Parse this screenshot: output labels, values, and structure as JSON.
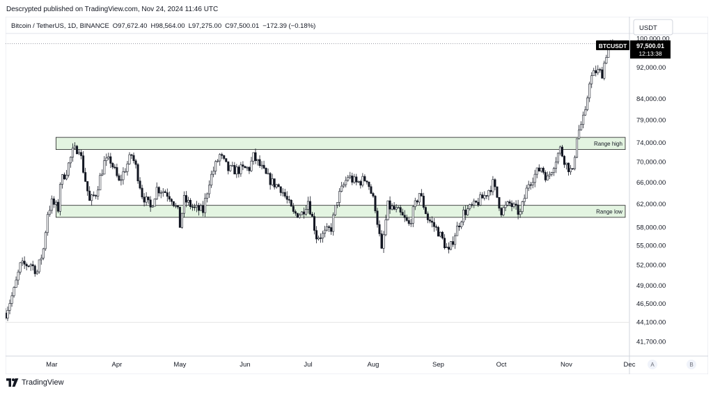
{
  "banner": "Descrypted published on TradingView.com, Nov 24, 2024 11:46 UTC",
  "footer_brand": "TradingView",
  "icons": {
    "logo": "tradingview-logo-icon"
  },
  "colors": {
    "up": "#131722",
    "down": "#131722",
    "zone_fill": "#e3f4e1",
    "zone_stroke": "#1e1e1e",
    "price_label_bg": "#000000",
    "price_label_fg": "#ffffff",
    "grid": "#e6e6e6",
    "dotted_line": "#9598a1"
  },
  "chart_data": {
    "type": "candlestick",
    "symbol_header": {
      "name": "Bitcoin / TetherUS, 1D, BINANCE",
      "open": "O97,672.40",
      "high": "H98,564.00",
      "low": "L97,275.00",
      "close": "C97,500.01",
      "change": "−172.39 (−0.18%)"
    },
    "currency_button": "USDT",
    "y_scale": "log",
    "ylim": [
      40000,
      101500
    ],
    "y_ticks": [
      {
        "value": 100000,
        "label": "100,000.00"
      },
      {
        "value": 92000,
        "label": "92,000.00"
      },
      {
        "value": 84000,
        "label": "84,000.00"
      },
      {
        "value": 79000,
        "label": "79,000.00"
      },
      {
        "value": 74000,
        "label": "74,000.00"
      },
      {
        "value": 70000,
        "label": "70,000.00"
      },
      {
        "value": 66000,
        "label": "66,000.00"
      },
      {
        "value": 62000,
        "label": "62,000.00"
      },
      {
        "value": 58000,
        "label": "58,000.00"
      },
      {
        "value": 55000,
        "label": "55,000.00"
      },
      {
        "value": 52000,
        "label": "52,000.00"
      },
      {
        "value": 49000,
        "label": "49,000.00"
      },
      {
        "value": 46500,
        "label": "46,500.00"
      },
      {
        "value": 44100,
        "label": "44,100.00"
      },
      {
        "value": 41700,
        "label": "41,700.00"
      }
    ],
    "x_months": [
      {
        "label": "Mar",
        "date": "2024-03-01"
      },
      {
        "label": "Apr",
        "date": "2024-04-01"
      },
      {
        "label": "May",
        "date": "2024-05-01"
      },
      {
        "label": "Jun",
        "date": "2024-06-01"
      },
      {
        "label": "Jul",
        "date": "2024-07-01"
      },
      {
        "label": "Aug",
        "date": "2024-08-01"
      },
      {
        "label": "Sep",
        "date": "2024-09-01"
      },
      {
        "label": "Oct",
        "date": "2024-10-01"
      },
      {
        "label": "Nov",
        "date": "2024-11-01"
      },
      {
        "label": "Dec",
        "date": "2024-12-01"
      }
    ],
    "x_range": [
      "2024-02-08",
      "2024-12-01"
    ],
    "nav_buttons": [
      "A",
      "B"
    ],
    "price_label": {
      "symbol": "BTCUSDT",
      "price": "97,500.01",
      "countdown": "12:13:38",
      "value": 97500.01
    },
    "horizontal_line": {
      "value": 98564
    },
    "zones": [
      {
        "label": "Range high",
        "low": 72600,
        "high": 75200,
        "start": "2024-03-03",
        "end": "2024-11-29"
      },
      {
        "label": "Range low",
        "low": 59700,
        "high": 61800,
        "start": "2024-03-03",
        "end": "2024-11-29"
      }
    ],
    "close_path": [
      [
        "2024-02-08",
        45300
      ],
      [
        "2024-02-12",
        48300
      ],
      [
        "2024-02-15",
        51900
      ],
      [
        "2024-02-20",
        52200
      ],
      [
        "2024-02-23",
        51000
      ],
      [
        "2024-02-26",
        54500
      ],
      [
        "2024-02-28",
        60500
      ],
      [
        "2024-03-01",
        62300
      ],
      [
        "2024-03-04",
        61200
      ],
      [
        "2024-03-05",
        66000
      ],
      [
        "2024-03-08",
        68300
      ],
      [
        "2024-03-11",
        72100
      ],
      [
        "2024-03-14",
        73100
      ],
      [
        "2024-03-16",
        68500
      ],
      [
        "2024-03-19",
        62400
      ],
      [
        "2024-03-22",
        64000
      ],
      [
        "2024-03-26",
        69900
      ],
      [
        "2024-03-29",
        70300
      ],
      [
        "2024-04-02",
        66000
      ],
      [
        "2024-04-08",
        71500
      ],
      [
        "2024-04-10",
        69000
      ],
      [
        "2024-04-13",
        63800
      ],
      [
        "2024-04-17",
        61300
      ],
      [
        "2024-04-20",
        64900
      ],
      [
        "2024-04-24",
        64300
      ],
      [
        "2024-04-27",
        63200
      ],
      [
        "2024-04-30",
        60600
      ],
      [
        "2024-05-01",
        58300
      ],
      [
        "2024-05-03",
        62800
      ],
      [
        "2024-05-08",
        61200
      ],
      [
        "2024-05-12",
        60800
      ],
      [
        "2024-05-15",
        66300
      ],
      [
        "2024-05-20",
        71400
      ],
      [
        "2024-05-24",
        68500
      ],
      [
        "2024-05-28",
        68400
      ],
      [
        "2024-06-03",
        68800
      ],
      [
        "2024-06-05",
        71100
      ],
      [
        "2024-06-08",
        69300
      ],
      [
        "2024-06-11",
        67300
      ],
      [
        "2024-06-14",
        66000
      ],
      [
        "2024-06-18",
        65000
      ],
      [
        "2024-06-24",
        60300
      ],
      [
        "2024-06-28",
        60400
      ],
      [
        "2024-07-01",
        62700
      ],
      [
        "2024-07-05",
        56500
      ],
      [
        "2024-07-08",
        56700
      ],
      [
        "2024-07-12",
        57900
      ],
      [
        "2024-07-15",
        62900
      ],
      [
        "2024-07-20",
        67200
      ],
      [
        "2024-07-24",
        65900
      ],
      [
        "2024-07-29",
        66800
      ],
      [
        "2024-08-02",
        61500
      ],
      [
        "2024-08-05",
        54000
      ],
      [
        "2024-08-08",
        61700
      ],
      [
        "2024-08-13",
        60600
      ],
      [
        "2024-08-18",
        58400
      ],
      [
        "2024-08-23",
        64100
      ],
      [
        "2024-08-27",
        59500
      ],
      [
        "2024-09-01",
        57300
      ],
      [
        "2024-09-06",
        53900
      ],
      [
        "2024-09-09",
        57000
      ],
      [
        "2024-09-13",
        60500
      ],
      [
        "2024-09-18",
        61700
      ],
      [
        "2024-09-23",
        63500
      ],
      [
        "2024-09-27",
        65800
      ],
      [
        "2024-10-01",
        60800
      ],
      [
        "2024-10-05",
        62100
      ],
      [
        "2024-10-10",
        60300
      ],
      [
        "2024-10-14",
        66000
      ],
      [
        "2024-10-20",
        69000
      ],
      [
        "2024-10-23",
        66700
      ],
      [
        "2024-10-29",
        72700
      ],
      [
        "2024-11-01",
        69500
      ],
      [
        "2024-11-04",
        67800
      ],
      [
        "2024-11-06",
        75600
      ],
      [
        "2024-11-10",
        80400
      ],
      [
        "2024-11-12",
        88700
      ],
      [
        "2024-11-15",
        91000
      ],
      [
        "2024-11-18",
        90500
      ],
      [
        "2024-11-21",
        98300
      ],
      [
        "2024-11-24",
        97500
      ]
    ]
  }
}
